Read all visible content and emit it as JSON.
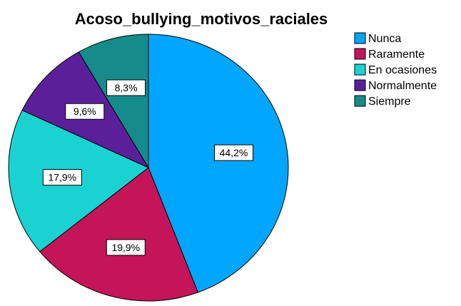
{
  "chart_data": {
    "type": "pie",
    "title": "Acoso_bullying_motivos_raciales",
    "categories": [
      "Nunca",
      "Raramente",
      "En ocasiones",
      "Normalmente",
      "Siempre"
    ],
    "values": [
      44.2,
      19.9,
      17.9,
      9.6,
      8.3
    ],
    "data_labels": [
      "44,2%",
      "19,9%",
      "17,9%",
      "9,6%",
      "8,3%"
    ],
    "colors": [
      "#00a6ff",
      "#c41559",
      "#1ad2d2",
      "#5c1f9a",
      "#168b8b"
    ],
    "legend": {
      "placement": "top-right",
      "entries": [
        "Nunca",
        "Raramente",
        "En ocasiones",
        "Normalmente",
        "Siempre"
      ]
    },
    "start_angle_deg": 0,
    "direction": "clockwise"
  }
}
